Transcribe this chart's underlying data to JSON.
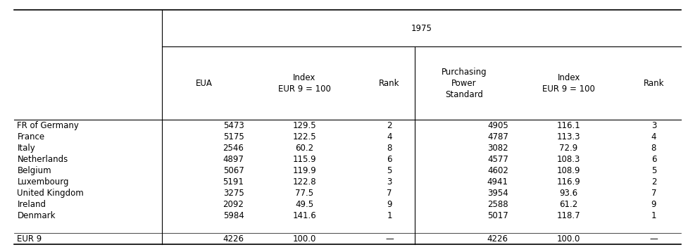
{
  "title_year": "1975",
  "col_headers": [
    "EUA",
    "Index\nEUR 9 = 100",
    "Rank",
    "Purchasing\nPower\nStandard",
    "Index\nEUR 9 = 100",
    "Rank"
  ],
  "row_labels": [
    "FR of Germany",
    "France",
    "Italy",
    "Netherlands",
    "Belgium",
    "Luxembourg",
    "United Kingdom",
    "Ireland",
    "Denmark",
    "",
    "EUR 9"
  ],
  "rows": [
    [
      "5473",
      "129.5",
      "2",
      "4905",
      "116.1",
      "3"
    ],
    [
      "5175",
      "122.5",
      "4",
      "4787",
      "113.3",
      "4"
    ],
    [
      "2546",
      "60.2",
      "8",
      "3082",
      "72.9",
      "8"
    ],
    [
      "4897",
      "115.9",
      "6",
      "4577",
      "108.3",
      "6"
    ],
    [
      "5067",
      "119.9",
      "5",
      "4602",
      "108.9",
      "5"
    ],
    [
      "5191",
      "122.8",
      "3",
      "4941",
      "116.9",
      "2"
    ],
    [
      "3275",
      "77.5",
      "7",
      "3954",
      "93.6",
      "7"
    ],
    [
      "2092",
      "49.5",
      "9",
      "2588",
      "61.2",
      "9"
    ],
    [
      "5984",
      "141.6",
      "1",
      "5017",
      "118.7",
      "1"
    ],
    [
      "",
      "",
      "",
      "",
      "",
      ""
    ],
    [
      "4226",
      "100.0",
      "—",
      "4226",
      "100.0",
      "—"
    ]
  ],
  "bg_color": "#ffffff",
  "text_color": "#000000",
  "font_size": 8.5,
  "header_font_size": 8.5,
  "fig_width": 9.77,
  "fig_height": 3.58
}
